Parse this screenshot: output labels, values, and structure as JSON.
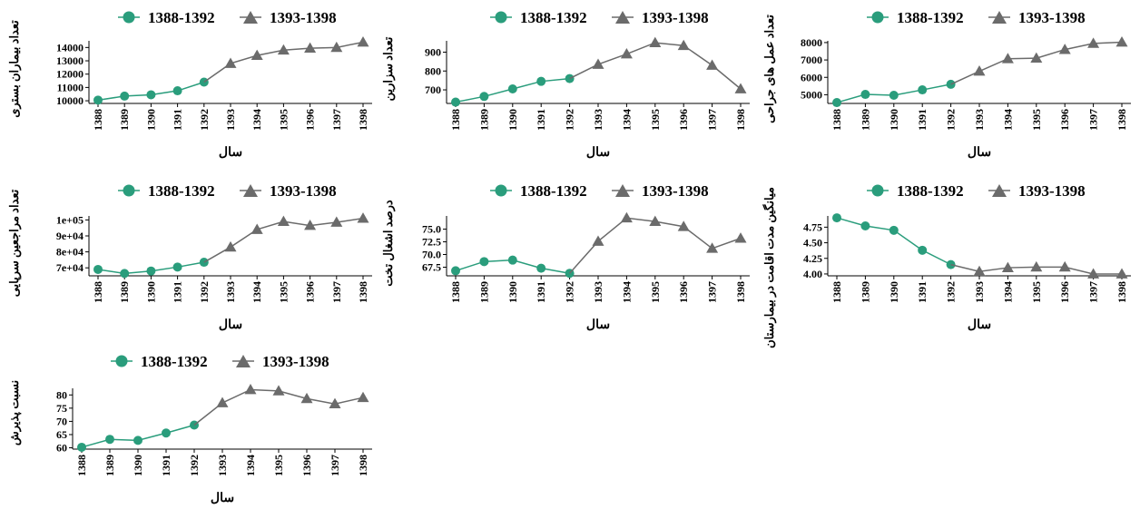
{
  "colors": {
    "early": "#2a9d7c",
    "late": "#6b6b6b",
    "axis": "#000000"
  },
  "legend": {
    "early_label": "1388-1392",
    "late_label": "1393-1398",
    "early_marker": "circle",
    "late_marker": "triangle"
  },
  "chart_data": [
    {
      "type": "line",
      "ylabel": "تعداد بیماران بستری",
      "xlabel": "سال",
      "x": [
        "1388",
        "1389",
        "1390",
        "1391",
        "1392",
        "1393",
        "1394",
        "1395",
        "1396",
        "1397",
        "1398"
      ],
      "yticks": [
        10000,
        11000,
        12000,
        13000,
        14000
      ],
      "ytick_labels": [
        "10000",
        "11000",
        "12000",
        "13000",
        "14000"
      ],
      "ylim": [
        9800,
        14500
      ],
      "series": [
        {
          "name": "1388-1392",
          "x": [
            "1388",
            "1389",
            "1390",
            "1391",
            "1392"
          ],
          "values": [
            10050,
            10350,
            10450,
            10750,
            11400
          ]
        },
        {
          "name": "1393-1398",
          "x": [
            "1392",
            "1393",
            "1394",
            "1395",
            "1396",
            "1397",
            "1398"
          ],
          "values": [
            11400,
            12800,
            13400,
            13800,
            13950,
            14000,
            14400
          ]
        }
      ]
    },
    {
      "type": "line",
      "ylabel": "تعداد سزارین",
      "xlabel": "سال",
      "x": [
        "1388",
        "1389",
        "1390",
        "1391",
        "1392",
        "1393",
        "1394",
        "1395",
        "1396",
        "1397",
        "1398"
      ],
      "yticks": [
        700,
        800,
        900
      ],
      "ytick_labels": [
        "700",
        "800",
        "900"
      ],
      "ylim": [
        628,
        960
      ],
      "series": [
        {
          "name": "1388-1392",
          "x": [
            "1388",
            "1389",
            "1390",
            "1391",
            "1392"
          ],
          "values": [
            635,
            665,
            705,
            745,
            760
          ]
        },
        {
          "name": "1393-1398",
          "x": [
            "1392",
            "1393",
            "1394",
            "1395",
            "1396",
            "1397",
            "1398"
          ],
          "values": [
            760,
            835,
            890,
            950,
            935,
            830,
            705
          ]
        }
      ]
    },
    {
      "type": "line",
      "ylabel": "تعداد عمل های جراحی",
      "xlabel": "سال",
      "x": [
        "1388",
        "1389",
        "1390",
        "1391",
        "1392",
        "1393",
        "1394",
        "1395",
        "1396",
        "1397",
        "1398"
      ],
      "yticks": [
        5000,
        6000,
        7000,
        8000
      ],
      "ytick_labels": [
        "5000",
        "6000",
        "7000",
        "8000"
      ],
      "ylim": [
        4500,
        8100
      ],
      "series": [
        {
          "name": "1388-1392",
          "x": [
            "1388",
            "1389",
            "1390",
            "1391",
            "1392"
          ],
          "values": [
            4550,
            5020,
            4970,
            5280,
            5600
          ]
        },
        {
          "name": "1393-1398",
          "x": [
            "1392",
            "1393",
            "1394",
            "1395",
            "1396",
            "1397",
            "1398"
          ],
          "values": [
            5600,
            6350,
            7070,
            7100,
            7600,
            7950,
            8020
          ]
        }
      ]
    },
    {
      "type": "line",
      "ylabel": "تعداد مراجعین سرپایی",
      "xlabel": "سال",
      "x": [
        "1388",
        "1389",
        "1390",
        "1391",
        "1392",
        "1393",
        "1394",
        "1395",
        "1396",
        "1397",
        "1398"
      ],
      "yticks": [
        70000,
        80000,
        90000,
        100000
      ],
      "ytick_labels": [
        "7e+04",
        "8e+04",
        "9e+04",
        "1e+05"
      ],
      "ylim": [
        65000,
        102500
      ],
      "series": [
        {
          "name": "1388-1392",
          "x": [
            "1388",
            "1389",
            "1390",
            "1391",
            "1392"
          ],
          "values": [
            69000,
            66500,
            68000,
            70500,
            73500
          ]
        },
        {
          "name": "1393-1398",
          "x": [
            "1392",
            "1393",
            "1394",
            "1395",
            "1396",
            "1397",
            "1398"
          ],
          "values": [
            73500,
            83000,
            94000,
            99000,
            96500,
            98500,
            101000
          ]
        }
      ]
    },
    {
      "type": "line",
      "ylabel": "درصد اشغال تخت",
      "xlabel": "سال",
      "x": [
        "1388",
        "1389",
        "1390",
        "1391",
        "1392",
        "1393",
        "1394",
        "1395",
        "1396",
        "1397",
        "1398"
      ],
      "yticks": [
        67.5,
        70.0,
        72.5,
        75.0
      ],
      "ytick_labels": [
        "67.5",
        "70.0",
        "72.5",
        "75.0"
      ],
      "ylim": [
        65.8,
        77.6
      ],
      "series": [
        {
          "name": "1388-1392",
          "x": [
            "1388",
            "1389",
            "1390",
            "1391",
            "1392"
          ],
          "values": [
            66.8,
            68.6,
            68.9,
            67.3,
            66.3
          ]
        },
        {
          "name": "1393-1398",
          "x": [
            "1392",
            "1393",
            "1394",
            "1395",
            "1396",
            "1397",
            "1398"
          ],
          "values": [
            66.3,
            72.6,
            77.2,
            76.5,
            75.5,
            71.2,
            73.2
          ]
        }
      ]
    },
    {
      "type": "line",
      "ylabel": "میانگین مدت اقامت در بیمارستان",
      "xlabel": "سال",
      "x": [
        "1388",
        "1389",
        "1390",
        "1391",
        "1392",
        "1393",
        "1394",
        "1395",
        "1396",
        "1397",
        "1398"
      ],
      "yticks": [
        4.0,
        4.25,
        4.5,
        4.75
      ],
      "ytick_labels": [
        "4.00",
        "4.25",
        "4.50",
        "4.75"
      ],
      "ylim": [
        3.97,
        4.93
      ],
      "series": [
        {
          "name": "1388-1392",
          "x": [
            "1388",
            "1389",
            "1390",
            "1391",
            "1392"
          ],
          "values": [
            4.9,
            4.77,
            4.7,
            4.38,
            4.15
          ]
        },
        {
          "name": "1393-1398",
          "x": [
            "1392",
            "1393",
            "1394",
            "1395",
            "1396",
            "1397",
            "1398"
          ],
          "values": [
            4.15,
            4.04,
            4.1,
            4.11,
            4.11,
            4.0,
            4.0
          ]
        }
      ]
    },
    {
      "type": "line",
      "ylabel": "نسبت پذیرش",
      "xlabel": "سال",
      "x": [
        "1388",
        "1389",
        "1390",
        "1391",
        "1392",
        "1393",
        "1394",
        "1395",
        "1396",
        "1397",
        "1398"
      ],
      "yticks": [
        60,
        65,
        70,
        75,
        80
      ],
      "ytick_labels": [
        "60",
        "65",
        "70",
        "75",
        "80"
      ],
      "ylim": [
        59.5,
        82.5
      ],
      "series": [
        {
          "name": "1388-1392",
          "x": [
            "1388",
            "1389",
            "1390",
            "1391",
            "1392"
          ],
          "values": [
            60.2,
            63.2,
            62.8,
            65.6,
            68.6
          ]
        },
        {
          "name": "1393-1398",
          "x": [
            "1392",
            "1393",
            "1394",
            "1395",
            "1396",
            "1397",
            "1398"
          ],
          "values": [
            68.6,
            77.0,
            82.0,
            81.5,
            78.6,
            76.6,
            79.0
          ]
        }
      ]
    }
  ]
}
